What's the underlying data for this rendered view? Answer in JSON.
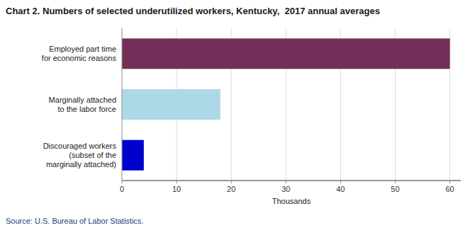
{
  "chart_data": {
    "type": "bar",
    "orientation": "horizontal",
    "title": "Chart 2. Numbers of selected underutilized workers, Kentucky,  2017 annual averages",
    "categories": [
      "Discouraged workers\n(subset of the\nmarginally attached)",
      "Marginally attached\nto the labor force",
      "Employed part time\nfor economic reasons"
    ],
    "values": [
      4,
      18,
      60
    ],
    "colors": [
      "#0000cc",
      "#add8e6",
      "#722f57"
    ],
    "xlim": [
      0,
      62
    ],
    "xticks": [
      0,
      10,
      20,
      30,
      40,
      50,
      60
    ],
    "xlabel": "Thousands",
    "grid": true,
    "source": "Source: U.S. Bureau of Labor Statistics."
  }
}
